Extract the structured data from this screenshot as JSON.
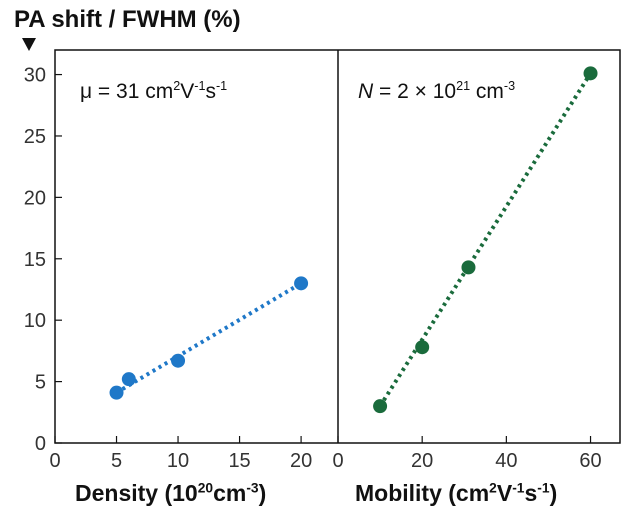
{
  "figure": {
    "y_axis_title": "PA shift / FWHM (%)",
    "left_panel": {
      "xlabel_main": "Density (10",
      "xlabel_exp": "20",
      "xlabel_unit": "cm",
      "xlabel_unit_exp": "-3",
      "xlabel_close": ")",
      "annotation_main": "μ = 31 cm",
      "annotation_exp1": "2",
      "annotation_mid": "V",
      "annotation_exp2": "-1",
      "annotation_mid2": "s",
      "annotation_exp3": "-1"
    },
    "right_panel": {
      "xlabel_main": "Mobility (cm",
      "xlabel_exp1": "2",
      "xlabel_mid": "V",
      "xlabel_exp2": "-1",
      "xlabel_mid2": "s",
      "xlabel_exp3": "-1",
      "xlabel_close": ")",
      "annotation_var": "N",
      "annotation_main": " = 2 × 10",
      "annotation_exp": "21",
      "annotation_unit": " cm",
      "annotation_unit_exp": "-3"
    }
  },
  "chart_data": [
    {
      "type": "scatter",
      "panel": "left",
      "color": "#1f78c8",
      "fit_line": "dotted",
      "x": [
        5,
        6,
        10,
        20
      ],
      "y": [
        4.1,
        5.2,
        6.7,
        13.0
      ],
      "xlim": [
        0,
        23
      ],
      "ylim": [
        0,
        32
      ],
      "xticks": [
        0,
        5,
        10,
        15,
        20
      ],
      "yticks": [
        0,
        5,
        10,
        15,
        20,
        25,
        30
      ],
      "xlabel": "Density (10^20 cm^-3)",
      "ylabel": "PA shift / FWHM (%)"
    },
    {
      "type": "scatter",
      "panel": "right",
      "color": "#1a6b3c",
      "fit_line": "dotted",
      "x": [
        10,
        20,
        31,
        60
      ],
      "y": [
        3.0,
        7.8,
        14.3,
        30.1
      ],
      "xlim": [
        0,
        67
      ],
      "ylim": [
        0,
        32
      ],
      "xticks": [
        0,
        20,
        40,
        60
      ],
      "xlabel": "Mobility (cm^2 V^-1 s^-1)"
    }
  ]
}
